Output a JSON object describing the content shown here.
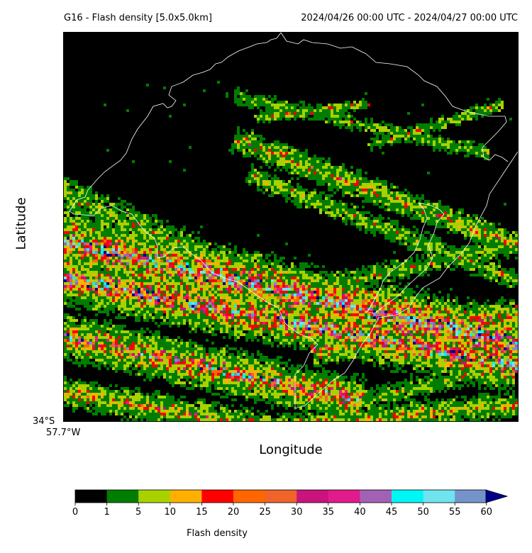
{
  "header": {
    "title_left": "G16 - Flash density [5.0x5.0km]",
    "title_right": "2024/04/26 00:00 UTC - 2024/04/27 00:00 UTC"
  },
  "axes": {
    "xlabel": "Longitude",
    "ylabel": "Latitude",
    "lat_tick": "34°S",
    "lon_tick": "57.7°W"
  },
  "colorbar": {
    "label": "Flash density",
    "ticks": [
      "0",
      "1",
      "5",
      "10",
      "15",
      "20",
      "25",
      "30",
      "35",
      "40",
      "45",
      "50",
      "55",
      "60"
    ],
    "colors": [
      "#000000",
      "#007d00",
      "#a8d100",
      "#ffb000",
      "#ff0000",
      "#ff6600",
      "#f0642c",
      "#c8147c",
      "#e31a8c",
      "#a361b5",
      "#00f5f5",
      "#6fe3ee",
      "#7593cb"
    ],
    "extend_color": "#00008b"
  },
  "map": {
    "background": "#000000",
    "border_color": "#ffffff"
  }
}
